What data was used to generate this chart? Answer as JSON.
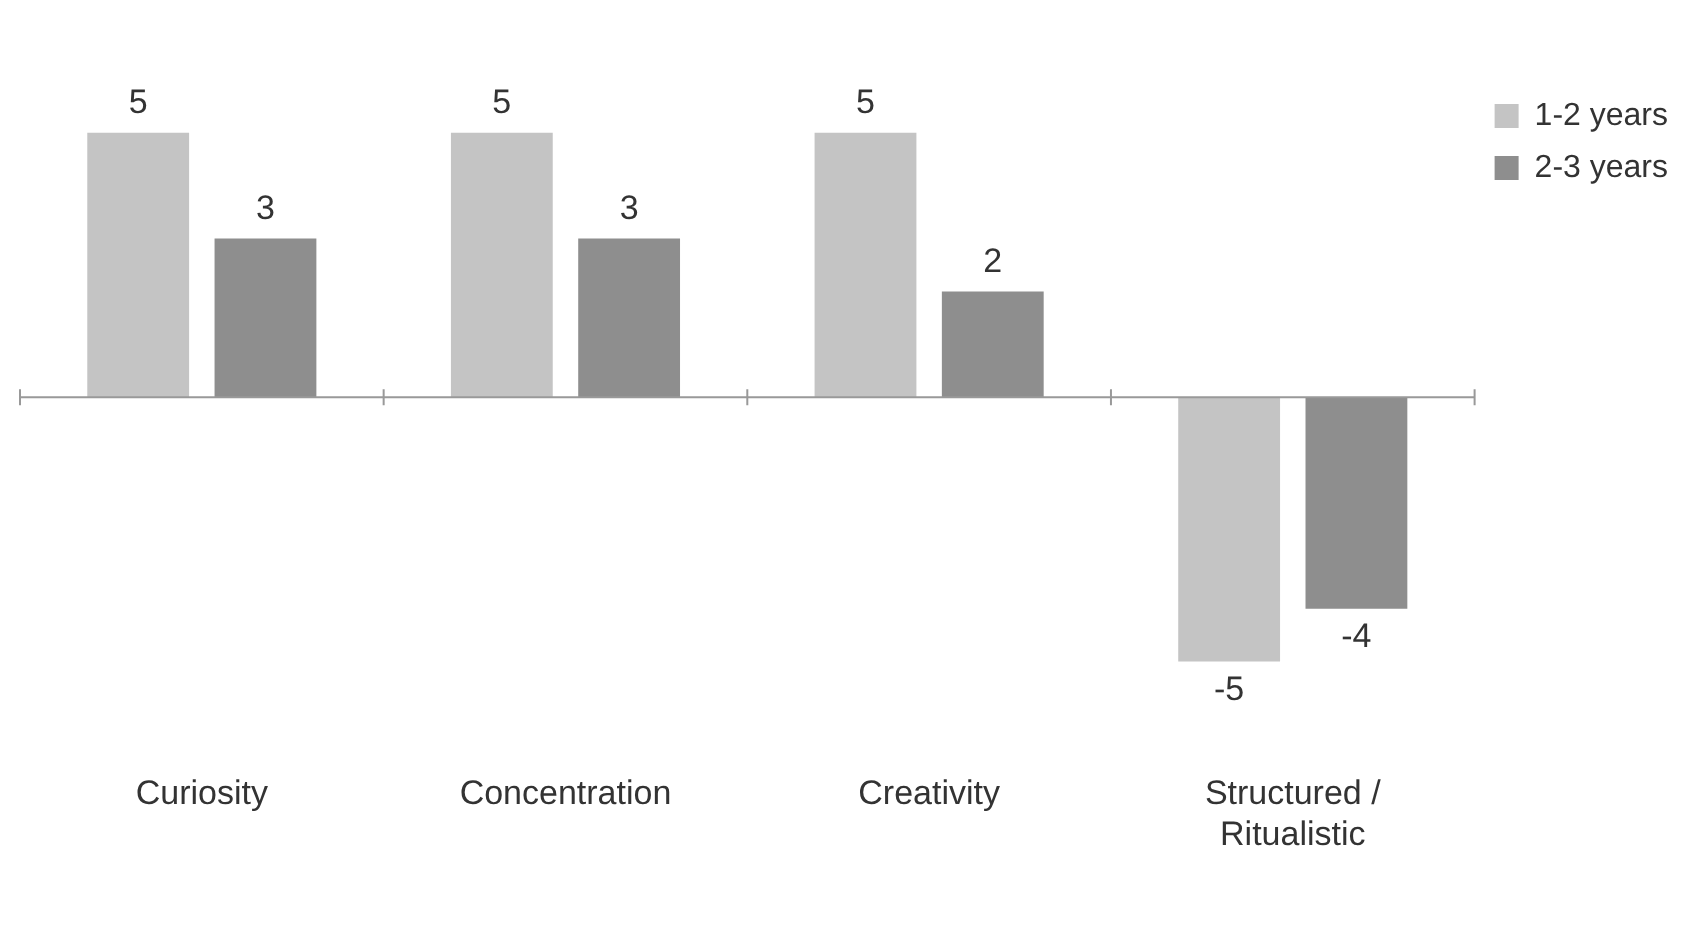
{
  "chart_data": {
    "type": "bar",
    "categories": [
      "Curiosity",
      "Concentration",
      "Creativity",
      "Structured / Ritualistic"
    ],
    "series": [
      {
        "name": "1-2 years",
        "color": "#c4c4c4",
        "values": [
          5,
          5,
          5,
          -5
        ]
      },
      {
        "name": "2-3 years",
        "color": "#8e8e8e",
        "values": [
          3,
          3,
          2,
          -4
        ]
      }
    ],
    "data_labels": true,
    "legend": "top right",
    "grid": false
  }
}
